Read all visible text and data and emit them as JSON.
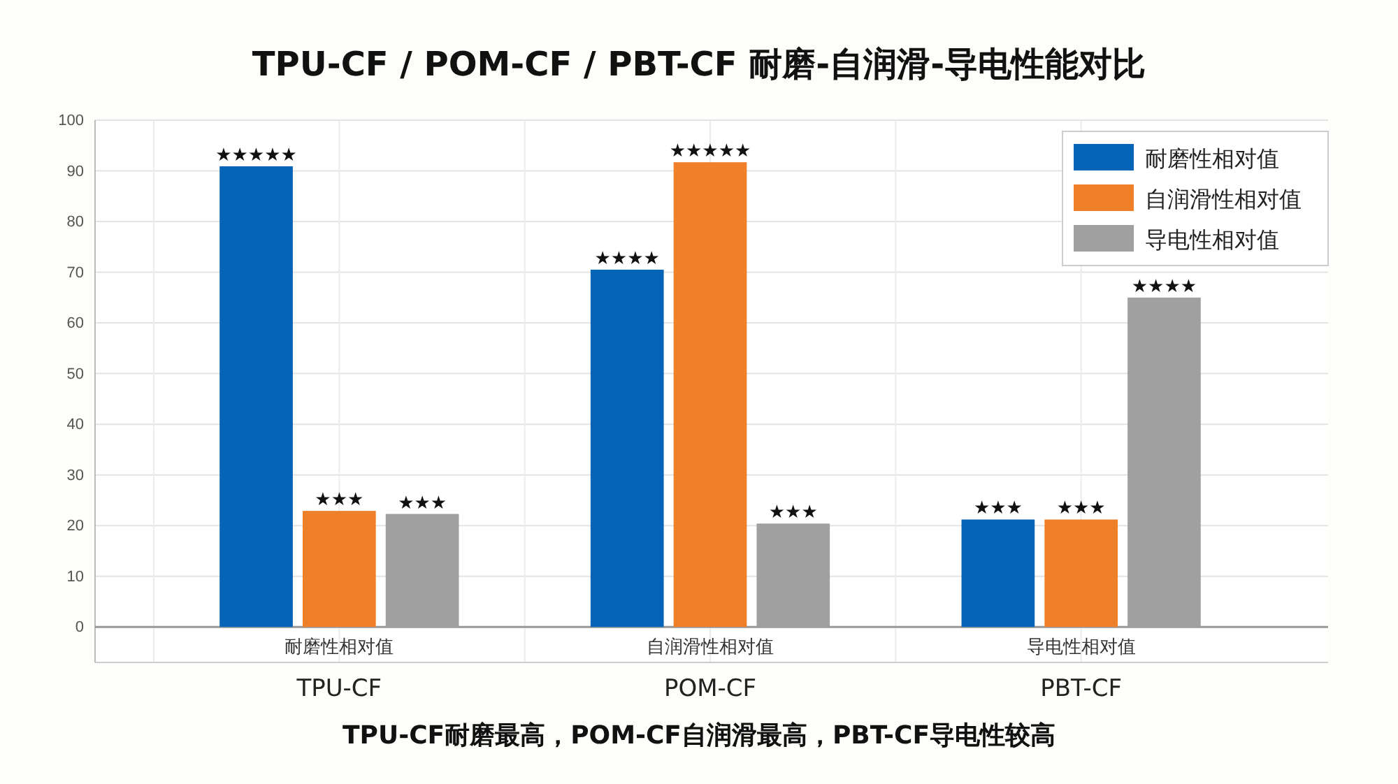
{
  "chart_data": {
    "type": "bar",
    "title": "TPU-CF / POM-CF / PBT-CF 耐磨-自润滑-导电性能对比",
    "categories": [
      "TPU-CF",
      "POM-CF",
      "PBT-CF"
    ],
    "series": [
      {
        "name": "耐磨性相对值",
        "color": "#0563b8",
        "values": [
          90.9,
          70.5,
          21.2
        ],
        "value_labels": [
          "★★★★★",
          "★★★★",
          "★★★"
        ]
      },
      {
        "name": "自润滑性相对值",
        "color": "#f07f2a",
        "values": [
          22.9,
          91.7,
          21.2
        ],
        "value_labels": [
          "★★★",
          "★★★★★",
          "★★★"
        ]
      },
      {
        "name": "导电性相对值",
        "color": "#a0a0a0",
        "values": [
          22.3,
          20.4,
          65.0
        ],
        "value_labels": [
          "★★★",
          "★★★",
          "★★★★"
        ]
      }
    ],
    "ylim": [
      -7,
      100
    ],
    "yticks": [
      0,
      10,
      20,
      30,
      40,
      50,
      60,
      70,
      80,
      90,
      100
    ],
    "grid": true,
    "legend": "top right",
    "annotations": [
      "耐磨性相对值",
      "自润滑性相对值",
      "导电性相对值",
      "TPU-CF耐磨最高，POM-CF自润滑最高，PBT-CF导电性较高"
    ]
  }
}
